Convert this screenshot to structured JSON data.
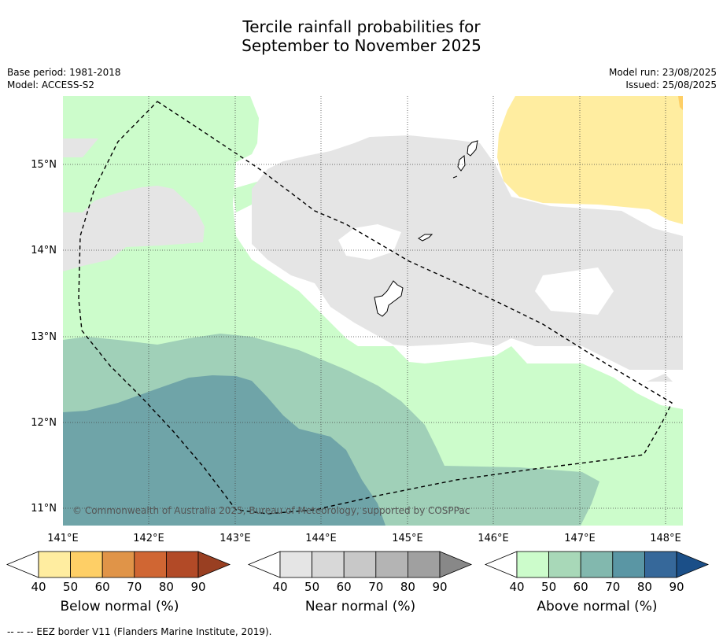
{
  "title_line1": "Tercile rainfall probabilities for",
  "title_line2": "September to November 2025",
  "base_period": "Base period: 1981-2018",
  "model": "Model: ACCESS-S2",
  "model_run": "Model run: 23/08/2025",
  "issued": "Issued: 25/08/2025",
  "map": {
    "lon_ticks": [
      "141°E",
      "142°E",
      "143°E",
      "144°E",
      "145°E",
      "146°E",
      "147°E",
      "148°E"
    ],
    "lat_ticks": [
      "15°N",
      "14°N",
      "13°N",
      "12°N",
      "11°N"
    ],
    "copyright": "© Commonwealth of Australia 2025, Bureau of Meteorology, supported by COSPPac",
    "colors": {
      "near_40": "#e5e5e5",
      "above_40": "#ccfccb",
      "above_50": "#a0d0b8",
      "above_60": "#6fa4a8",
      "below_40": "#ffeda0",
      "below_50": "#fecf66"
    }
  },
  "colorbars": [
    {
      "label": "Below normal (%)",
      "ticks": [
        "40",
        "50",
        "60",
        "70",
        "80",
        "90"
      ],
      "colors": [
        "#ffffff",
        "#ffeda0",
        "#fecf66",
        "#e09448",
        "#d06633",
        "#b24a27",
        "#993f22"
      ]
    },
    {
      "label": "Near normal (%)",
      "ticks": [
        "40",
        "50",
        "60",
        "70",
        "80",
        "90"
      ],
      "colors": [
        "#ffffff",
        "#e5e5e5",
        "#d8d8d8",
        "#c8c8c8",
        "#b4b4b4",
        "#a0a0a0",
        "#888888"
      ]
    },
    {
      "label": "Above normal (%)",
      "ticks": [
        "40",
        "50",
        "60",
        "70",
        "80",
        "90"
      ],
      "colors": [
        "#ffffff",
        "#ccfccb",
        "#a8d8b8",
        "#82b8ae",
        "#5a96a4",
        "#36689a",
        "#1b4f88"
      ]
    }
  ],
  "footnote": "--  --  -- EEZ border V11 (Flanders Marine Institute, 2019)."
}
